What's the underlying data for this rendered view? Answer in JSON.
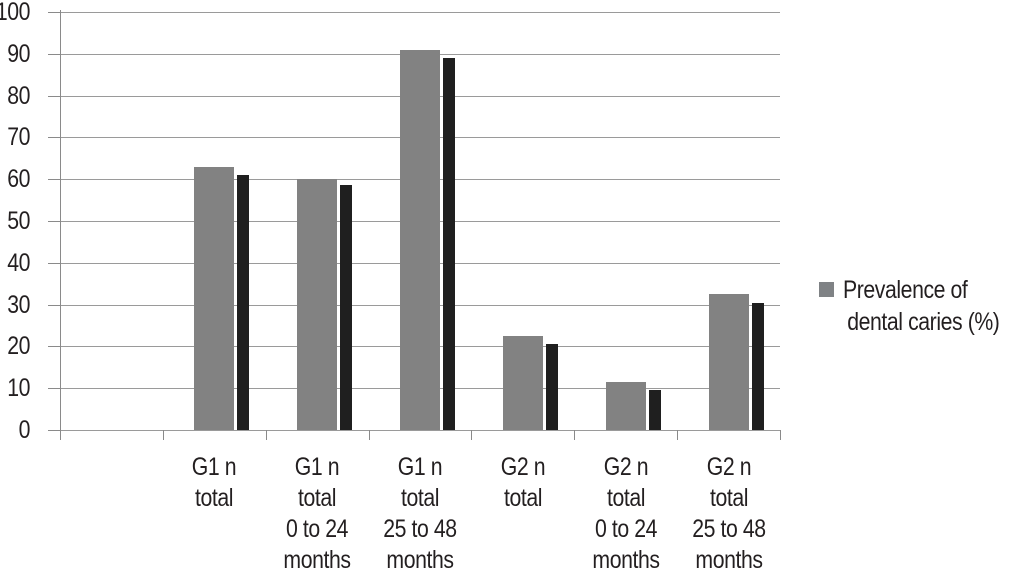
{
  "chart_data": {
    "type": "bar",
    "title": "",
    "categories": [
      "G1 n total",
      "G1 n total 0 to 24 months",
      "G1 n total 25 to 48 months",
      "G2 n total",
      "G2 n total 0 to 24 months",
      "G2 n total 25 to 48 months"
    ],
    "category_label_lines": [
      [
        "G1 n",
        "total"
      ],
      [
        "G1 n",
        "total",
        "0 to 24",
        "months"
      ],
      [
        "G1 n",
        "total",
        "25 to 48",
        "months"
      ],
      [
        "G2 n",
        "total"
      ],
      [
        "G2 n",
        "total",
        "0 to 24",
        "months"
      ],
      [
        "G2 n",
        "total",
        "25 to 48",
        "months"
      ]
    ],
    "series": [
      {
        "name": "Prevalence of dental caries (%)",
        "values": [
          63,
          60,
          91,
          22.5,
          11.5,
          32.5
        ]
      }
    ],
    "shadow_effect_values": [
      61,
      58.5,
      89,
      20.5,
      9.5,
      30.5
    ],
    "xlabel": "",
    "ylabel": "",
    "ylim": [
      0,
      100
    ],
    "yticks": [
      0,
      10,
      20,
      30,
      40,
      50,
      60,
      70,
      80,
      90,
      100
    ],
    "grid": true,
    "legend_position": "right"
  },
  "legend": {
    "line1": "Prevalence of",
    "line2": "dental caries (%)",
    "swatch_color": "#7f8285"
  },
  "colors": {
    "bar": "#828282",
    "bar_shadow": "#1f1f1f",
    "gridline": "#9a9a9a",
    "axis": "#8a8a8a",
    "text": "#231f20",
    "background": "#ffffff"
  }
}
